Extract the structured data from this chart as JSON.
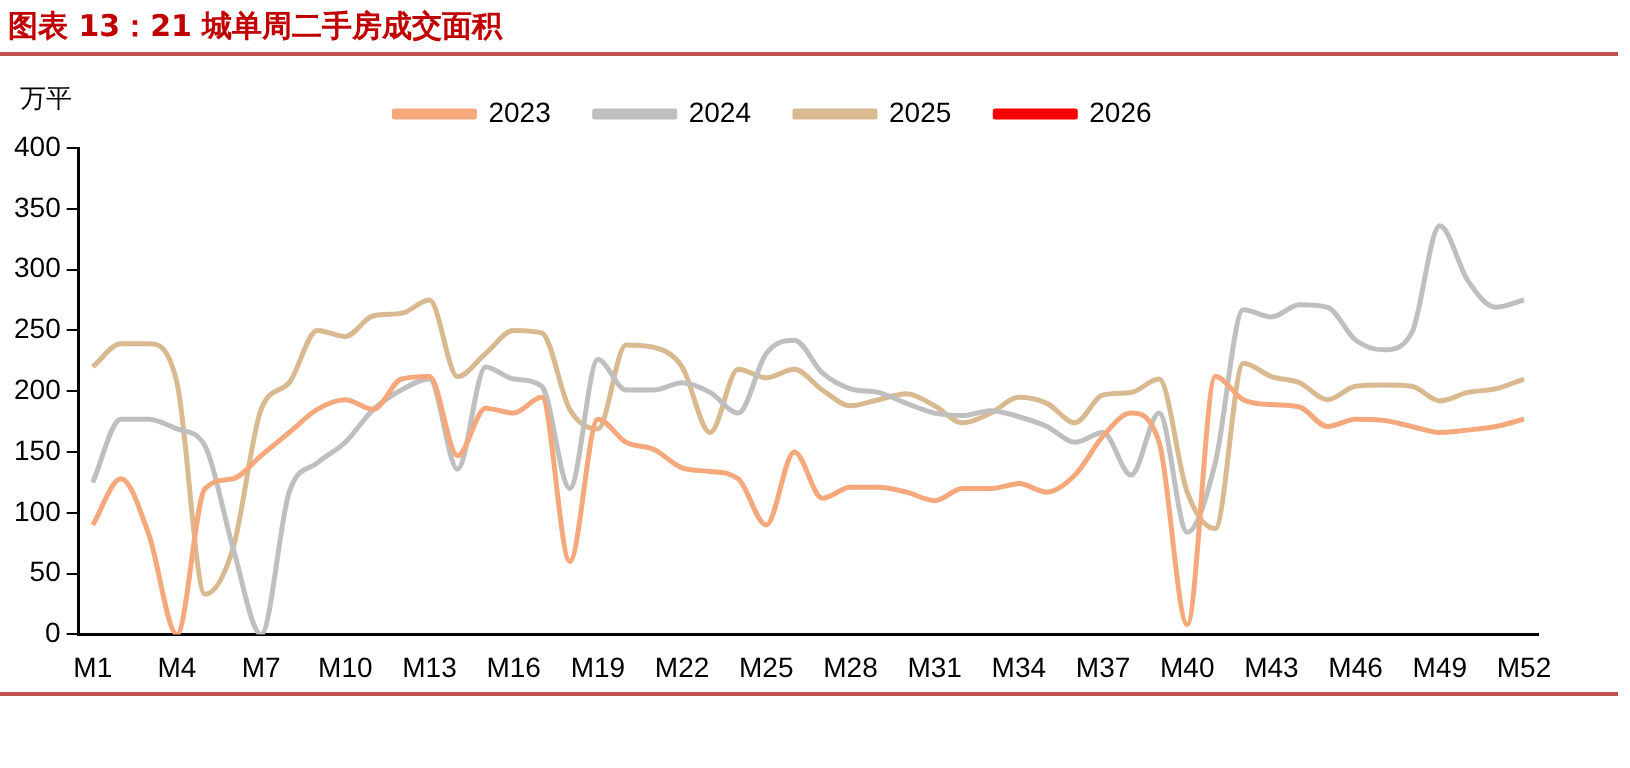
{
  "chart_data": {
    "type": "line",
    "title": "图表 13：21 城单周二手房成交面积",
    "ylabel": "万平",
    "categories": [
      "M1",
      null,
      null,
      "M4",
      null,
      null,
      "M7",
      null,
      null,
      "M10",
      null,
      null,
      "M13",
      null,
      null,
      "M16",
      null,
      null,
      "M19",
      null,
      null,
      "M22",
      null,
      null,
      "M25",
      null,
      null,
      "M28",
      null,
      null,
      "M31",
      null,
      null,
      "M34",
      null,
      null,
      "M37",
      null,
      null,
      "M40",
      null,
      null,
      "M43",
      null,
      null,
      "M46",
      null,
      null,
      "M49",
      null,
      null,
      "M52"
    ],
    "series": [
      {
        "name": "2023",
        "color": "#f4a87c",
        "values": [
          90,
          128,
          82,
          0,
          120,
          128,
          147,
          166,
          185,
          193,
          185,
          210,
          212,
          147,
          186,
          182,
          195,
          60,
          177,
          158,
          152,
          137,
          134,
          128,
          90,
          150,
          112,
          121,
          121,
          117,
          110,
          120,
          120,
          124,
          117,
          131,
          163,
          182,
          158,
          8,
          212,
          193,
          189,
          187,
          171,
          177,
          176,
          171,
          166,
          168,
          171,
          177
        ]
      },
      {
        "name": "2024",
        "color": "#bfbfbf",
        "values": [
          125,
          177,
          177,
          169,
          155,
          71,
          0,
          117,
          141,
          158,
          185,
          201,
          210,
          136,
          220,
          210,
          204,
          120,
          226,
          201,
          201,
          207,
          199,
          182,
          231,
          242,
          215,
          202,
          199,
          190,
          182,
          180,
          184,
          179,
          171,
          158,
          166,
          131,
          182,
          84,
          141,
          267,
          261,
          271,
          269,
          242,
          234,
          248,
          336,
          291,
          269,
          275
        ]
      },
      {
        "name": "2025",
        "color": "#d9b98f",
        "values": [
          220,
          239,
          239,
          207,
          33,
          71,
          185,
          207,
          250,
          245,
          262,
          264,
          275,
          212,
          231,
          250,
          248,
          185,
          169,
          238,
          236,
          220,
          166,
          218,
          211,
          218,
          201,
          188,
          193,
          198,
          188,
          174,
          182,
          195,
          190,
          174,
          197,
          199,
          210,
          117,
          87,
          223,
          212,
          207,
          193,
          204,
          205,
          204,
          192,
          199,
          202,
          210
        ]
      },
      {
        "name": "2026",
        "color": "#ff0000",
        "values": [
          null,
          null,
          null,
          null,
          null,
          null,
          null,
          null,
          null,
          null,
          null,
          null,
          null,
          null,
          null,
          null,
          null,
          null,
          null,
          null,
          null,
          null,
          null,
          null,
          null,
          null,
          null,
          null,
          null,
          null,
          null,
          null,
          null,
          null,
          null,
          null,
          null,
          null,
          null,
          null,
          null,
          null,
          null,
          null,
          null,
          null,
          null,
          null,
          null,
          null,
          null,
          null
        ]
      }
    ],
    "ylim": [
      0,
      400
    ],
    "yticks": [
      0,
      50,
      100,
      150,
      200,
      250,
      300,
      350,
      400
    ],
    "grid": false,
    "legend": "top",
    "marker": "none",
    "line_style": "solid"
  }
}
